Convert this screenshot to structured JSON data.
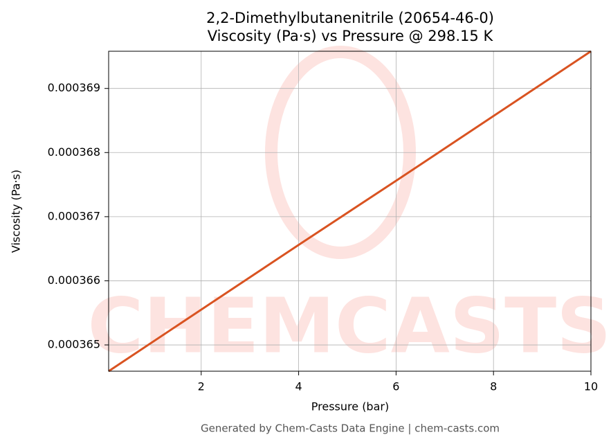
{
  "chart_data": {
    "type": "line",
    "title": [
      "2,2-Dimethylbutanenitrile (20654-46-0)",
      "Viscosity (Pa·s) vs Pressure @ 298.15 K"
    ],
    "x_label": "Pressure (bar)",
    "y_label": "Viscosity (Pa·s)",
    "x": [
      0.1,
      2,
      4,
      6,
      8,
      10
    ],
    "series": [
      {
        "name": "Viscosity",
        "color": "#d95321",
        "values": [
          0.00036459,
          0.00036555,
          0.00036656,
          0.00036756,
          0.00036857,
          0.00036958
        ]
      }
    ],
    "xlim": [
      0.1,
      10
    ],
    "ylim": [
      0.00036459,
      0.00036958
    ],
    "xticks": [
      2,
      4,
      6,
      8,
      10
    ],
    "yticks": [
      0.000365,
      0.000366,
      0.000367,
      0.000368,
      0.000369
    ],
    "grid": true,
    "watermark": "CHEMCASTS",
    "footer": "Generated by Chem-Casts Data Engine | chem-casts.com"
  }
}
